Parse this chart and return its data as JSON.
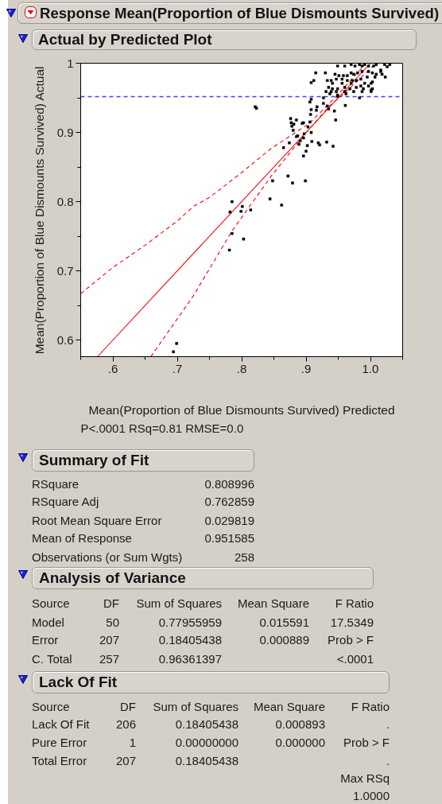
{
  "chart_data": [
    {
      "type": "scatter",
      "title": "Response Mean(Proportion of Blue Dismounts Survived)",
      "subtitle": "Actual by Predicted Plot",
      "xlabel": "Mean(Proportion of Blue Dismounts Survived) Predicted",
      "ylabel": "Mean(Proportion of Blue Dismounts Survived) Actual",
      "annotations": [
        "P<.0001 RSq=0.81 RMSE=0.0"
      ],
      "xlim": [
        0.55,
        1.05
      ],
      "ylim": [
        0.576,
        1.0
      ],
      "xticks": [
        {
          "value": 0.55,
          "label": null
        },
        {
          "value": 0.6,
          "label": ".6"
        },
        {
          "value": 0.65,
          "label": null
        },
        {
          "value": 0.7,
          "label": ".7"
        },
        {
          "value": 0.75,
          "label": null
        },
        {
          "value": 0.8,
          "label": ".8"
        },
        {
          "value": 0.85,
          "label": null
        },
        {
          "value": 0.9,
          "label": ".9"
        },
        {
          "value": 0.95,
          "label": null
        },
        {
          "value": 1.0,
          "label": "1.0"
        },
        {
          "value": 1.05,
          "label": null
        }
      ],
      "yticks": [
        0.6,
        {
          "value": 0.65,
          "label": null
        },
        0.7,
        {
          "value": 0.75,
          "label": null
        },
        0.8,
        {
          "value": 0.85,
          "label": null
        },
        0.9,
        {
          "value": 0.95,
          "label": null
        },
        1
      ],
      "ref_lines": [
        {
          "axis": "y",
          "value": 0.9516,
          "color": "#4040ff",
          "line_style": "dashed"
        }
      ],
      "series": [
        {
          "type": "line",
          "color": "#ff0000",
          "line_style": "solid",
          "x": [
            0.576,
            1.0
          ],
          "values": [
            0.576,
            1.0
          ]
        },
        {
          "type": "line",
          "color": "#ff0000",
          "line_style": "dashed",
          "x": [
            0.55,
            0.6,
            0.65,
            0.7,
            0.725,
            0.75,
            0.8,
            0.846,
            0.905,
            0.947,
            0.993
          ],
          "values": [
            0.667,
            0.705,
            0.737,
            0.772,
            0.793,
            0.806,
            0.842,
            0.877,
            0.913,
            0.952,
            1.0
          ]
        },
        {
          "type": "line",
          "color": "#ff0000",
          "line_style": "dashed",
          "x": [
            0.659,
            0.725,
            0.786,
            0.846,
            0.894,
            0.936,
            0.955,
            1.009
          ],
          "values": [
            0.576,
            0.664,
            0.759,
            0.837,
            0.893,
            0.938,
            0.953,
            1.0
          ]
        },
        {
          "type": "scatter",
          "color": "#000000",
          "marker": "square",
          "x": [
            0.694,
            0.699,
            0.781,
            0.782,
            0.785,
            0.785,
            0.799,
            0.801,
            0.803,
            0.814,
            0.821,
            0.823,
            0.844,
            0.848,
            0.862,
            0.872,
            0.879,
            0.899,
            0.865,
            0.874,
            0.876,
            0.877,
            0.878,
            0.88,
            0.881,
            0.885,
            0.885,
            0.887,
            0.889,
            0.891,
            0.894,
            0.896,
            0.896,
            0.896,
            0.897,
            0.9,
            0.902,
            0.903,
            0.906,
            0.907,
            0.908,
            0.908,
            0.909,
            0.906,
            0.908,
            0.916,
            0.917,
            0.919,
            0.921,
            0.927,
            0.927,
            0.932,
            0.933,
            0.935,
            0.942,
            0.944,
            0.946,
            0.961,
            0.983,
            0.949,
            0.96,
            0.97,
            0.976,
            0.983,
            0.987,
            0.991,
            0.997,
            1.005,
            1.009,
            1.022,
            1.03,
            0.915,
            0.93,
            0.945,
            0.951,
            0.958,
            0.964,
            0.97,
            0.974,
            0.98,
            0.987,
            0.997,
            1.003,
            1.009,
            1.016,
            0.912,
            0.908,
            0.933,
            0.939,
            0.947,
            0.956,
            0.964,
            0.972,
            0.978,
            0.985,
            0.995,
            1.007,
            1.018,
            1.023,
            0.941,
            0.956,
            0.97,
            0.991,
            1.003,
            0.935,
            0.941,
            0.949,
            0.96,
            0.968,
            0.978,
            0.985,
            0.989,
            0.997,
            1.003,
            0.931,
            0.939,
            0.947,
            0.96,
            0.974,
            0.987,
            1.001,
            0.937,
            0.962,
            0.949,
            0.949,
            1.026,
            1.016,
            1.001,
            1.001
          ],
          "values": [
            0.583,
            0.595,
            0.73,
            0.785,
            0.8,
            0.754,
            0.786,
            0.793,
            0.746,
            0.788,
            0.937,
            0.935,
            0.804,
            0.83,
            0.795,
            0.837,
            0.827,
            0.83,
            0.878,
            0.885,
            0.92,
            0.914,
            0.909,
            0.903,
            0.912,
            0.918,
            0.894,
            0.895,
            0.883,
            0.888,
            0.913,
            0.914,
            0.892,
            0.866,
            0.898,
            0.873,
            0.881,
            0.908,
            0.915,
            0.926,
            0.933,
            0.9,
            0.887,
            0.944,
            0.948,
            0.932,
            0.937,
            0.885,
            0.882,
            0.942,
            0.95,
            0.886,
            0.938,
            0.934,
            0.88,
            0.931,
            0.918,
            0.939,
            0.95,
            0.996,
            0.996,
            0.998,
            0.996,
            0.998,
            0.996,
            0.998,
            0.996,
            0.996,
            0.998,
            0.998,
            0.998,
            0.986,
            0.986,
            0.984,
            0.982,
            0.982,
            0.982,
            0.986,
            0.984,
            0.986,
            0.988,
            0.988,
            0.986,
            0.984,
            0.988,
            0.975,
            0.972,
            0.975,
            0.975,
            0.977,
            0.977,
            0.975,
            0.975,
            0.975,
            0.977,
            0.98,
            0.98,
            0.984,
            0.98,
            0.971,
            0.971,
            0.971,
            0.971,
            0.973,
            0.965,
            0.963,
            0.963,
            0.965,
            0.963,
            0.965,
            0.967,
            0.963,
            0.967,
            0.963,
            0.959,
            0.959,
            0.959,
            0.959,
            0.959,
            0.959,
            0.959,
            0.956,
            0.956,
            0.954,
            0.952,
            0.995,
            0.99,
            0.961,
            0.971
          ]
        }
      ]
    },
    {
      "type": "other",
      "title": "Summary of Fit",
      "cell_labels": [
        [
          "RSquare",
          "0.808996"
        ],
        [
          "RSquare Adj",
          "0.762859"
        ],
        [
          "Root Mean Square Error",
          "0.029819"
        ],
        [
          "Mean of Response",
          "0.951585"
        ],
        [
          "Observations (or Sum Wgts)",
          "258"
        ]
      ]
    },
    {
      "type": "other",
      "title": "Analysis of Variance",
      "categories": [
        "Source",
        "DF",
        "Sum of Squares",
        "Mean Square",
        "F Ratio"
      ],
      "cell_labels": [
        [
          "Model",
          "50",
          "0.77955959",
          "0.015591",
          "17.5349"
        ],
        [
          "Error",
          "207",
          "0.18405438",
          "0.000889",
          "Prob > F"
        ],
        [
          "C. Total",
          "257",
          "0.96361397",
          null,
          "<.0001"
        ]
      ]
    },
    {
      "type": "other",
      "title": "Lack Of Fit",
      "categories": [
        "Source",
        "DF",
        "Sum of Squares",
        "Mean Square",
        "F Ratio"
      ],
      "cell_labels": [
        [
          "Lack Of Fit",
          "206",
          "0.18405438",
          "0.000893",
          "."
        ],
        [
          "Pure Error",
          "1",
          "0.00000000",
          "0.000000",
          "Prob > F"
        ],
        [
          "Total Error",
          "207",
          "0.18405438",
          null,
          "."
        ],
        [
          null,
          null,
          null,
          null,
          "Max RSq"
        ],
        [
          null,
          null,
          null,
          null,
          "1.0000"
        ]
      ]
    }
  ]
}
